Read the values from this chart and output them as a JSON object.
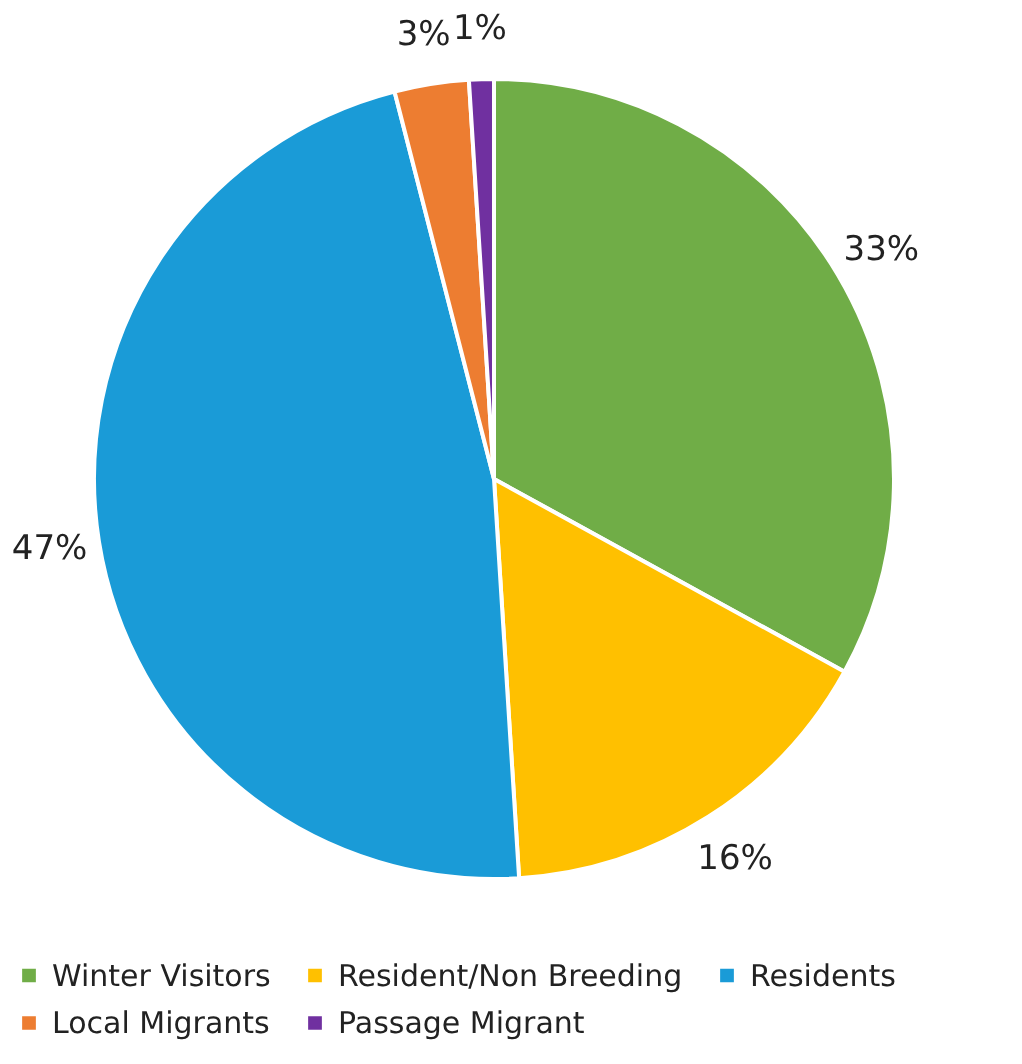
{
  "chart_data": {
    "type": "pie",
    "categories": [
      "Winter Visitors",
      "Resident/Non Breeding",
      "Residents",
      "Local Migrants",
      "Passage Migrant"
    ],
    "values": [
      33,
      16,
      47,
      3,
      1
    ],
    "value_labels": [
      "33%",
      "16%",
      "47%",
      "3%",
      "1%"
    ],
    "colors": [
      "#70ad47",
      "#ffc000",
      "#1a9bd7",
      "#ed7d31",
      "#7030a0"
    ],
    "legend": "bottom"
  }
}
